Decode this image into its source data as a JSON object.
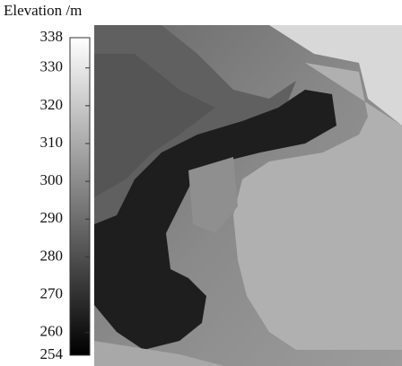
{
  "title": "Elevation /m",
  "colorbar": {
    "lim": [
      254,
      338
    ],
    "ticks": [
      254,
      260,
      270,
      280,
      290,
      300,
      310,
      320,
      330,
      338
    ],
    "colors": [
      "#000000",
      "#ffffff"
    ]
  }
}
